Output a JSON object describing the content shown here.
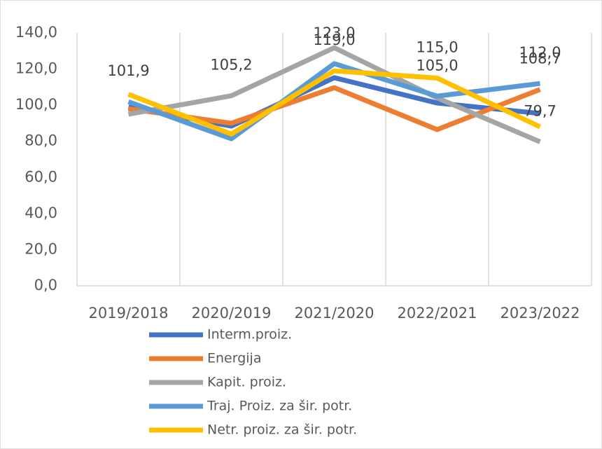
{
  "chart_data": {
    "type": "line",
    "categories": [
      "2019/2018",
      "2020/2019",
      "2021/2020",
      "2022/2021",
      "2023/2022"
    ],
    "series": [
      {
        "name": "Interm.proiz.",
        "color": "#4472c4",
        "values": [
          98.9,
          88.4,
          115.2,
          101.2,
          95.4
        ]
      },
      {
        "name": "Energija",
        "color": "#ed7d31",
        "values": [
          98,
          90,
          109.7,
          86.5,
          108.7
        ],
        "value_labels": [
          null,
          null,
          null,
          null,
          "108,7"
        ]
      },
      {
        "name": "Kapit. proiz.",
        "color": "#a5a5a5",
        "values": [
          95,
          105.2,
          131.8,
          104,
          79.7
        ],
        "value_labels": [
          null,
          "105,2",
          null,
          null,
          "79,7"
        ]
      },
      {
        "name": "Traj. Proiz. za šir. potr.",
        "color": "#5b9bd5",
        "values": [
          101.9,
          81.4,
          123,
          105,
          112
        ],
        "value_labels": [
          "101,9",
          null,
          "123,0",
          "105,0",
          "112,0"
        ]
      },
      {
        "name": "Netr. proiz. za šir. potr.",
        "color": "#ffc000",
        "values": [
          106,
          84,
          119,
          115,
          88
        ],
        "value_labels": [
          null,
          null,
          "119,0",
          "115,0",
          null
        ]
      }
    ],
    "ylim": [
      0,
      140
    ],
    "yticks": [
      {
        "value": 0,
        "label": "0,0"
      },
      {
        "value": 20,
        "label": "20,0"
      },
      {
        "value": 40,
        "label": "40,0"
      },
      {
        "value": 60,
        "label": "60,0"
      },
      {
        "value": 80,
        "label": "80,0"
      },
      {
        "value": 100,
        "label": "100,0"
      },
      {
        "value": 120,
        "label": "120,0"
      },
      {
        "value": 140,
        "label": "140,0"
      }
    ],
    "grid": false
  }
}
